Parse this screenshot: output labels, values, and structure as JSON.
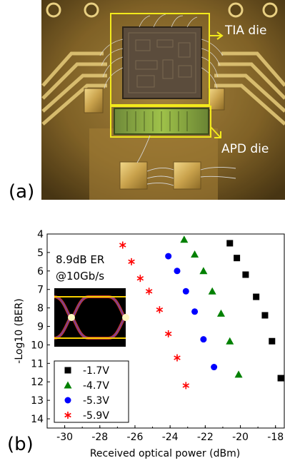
{
  "figure": {
    "panel_a_label": "(a)",
    "panel_b_label": "(b)"
  },
  "photo": {
    "tia_label": "TIA die",
    "apd_label": "APD die",
    "box_color": "#f2ea1c"
  },
  "inset": {
    "line1": "8.9dB ER",
    "line2": "@10Gb/s"
  },
  "chart_data": {
    "type": "scatter",
    "xlabel": "Received optical power (dBm)",
    "ylabel": "-Log10 (BER)",
    "xlim": [
      -31,
      -17.5
    ],
    "ylim": [
      14.5,
      4
    ],
    "y_inverted": true,
    "x_ticks": [
      -30,
      -28,
      -26,
      -24,
      -22,
      -20,
      -18
    ],
    "y_ticks": [
      4,
      5,
      6,
      7,
      8,
      9,
      10,
      11,
      12,
      13,
      14
    ],
    "legend_position": "bottom-left",
    "series": [
      {
        "name": "-1.7V",
        "marker": "square",
        "color": "#000000",
        "x": [
          -20.6,
          -20.2,
          -19.7,
          -19.1,
          -18.6,
          -18.2,
          -17.7
        ],
        "y": [
          4.5,
          5.3,
          6.2,
          7.4,
          8.4,
          9.8,
          11.8
        ]
      },
      {
        "name": "-4.7V",
        "marker": "triangle",
        "color": "#008000",
        "x": [
          -23.2,
          -22.6,
          -22.1,
          -21.6,
          -21.1,
          -20.6,
          -20.1
        ],
        "y": [
          4.3,
          5.1,
          6.0,
          7.1,
          8.3,
          9.8,
          11.6
        ]
      },
      {
        "name": "-5.3V",
        "marker": "circle",
        "color": "#0000ff",
        "x": [
          -24.1,
          -23.6,
          -23.1,
          -22.6,
          -22.1,
          -21.5
        ],
        "y": [
          5.2,
          6.0,
          7.1,
          8.2,
          9.7,
          11.2
        ]
      },
      {
        "name": "-5.9V",
        "marker": "star",
        "color": "#ff0000",
        "x": [
          -26.7,
          -26.2,
          -25.7,
          -25.2,
          -24.6,
          -24.1,
          -23.6,
          -23.1
        ],
        "y": [
          4.6,
          5.5,
          6.4,
          7.1,
          8.1,
          9.4,
          10.7,
          12.2
        ]
      }
    ]
  }
}
